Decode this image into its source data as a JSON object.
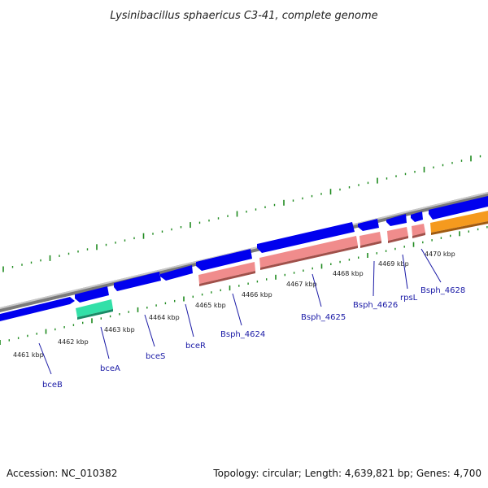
{
  "title": "Lysinibacillus sphaericus C3-41, complete genome",
  "footer": {
    "accession": "Accession: NC_010382",
    "summary": "Topology: circular; Length: 4,639,821 bp; Genes: 4,700"
  },
  "colors": {
    "backbone": "#7a7a7a",
    "forward_gene": "#0000ee",
    "rna_gene": "#f08c8c",
    "special_gene": "#33e0a8",
    "orange_gene": "#f59a1e",
    "ticks": "#1e8a1e",
    "label": "#1a1aa6"
  },
  "kbp_labels": [
    "4461 kbp",
    "4462 kbp",
    "4463 kbp",
    "4464 kbp",
    "4465 kbp",
    "4466 kbp",
    "4467 kbp",
    "4468 kbp",
    "4469 kbp",
    "4470 kbp"
  ],
  "gene_labels": [
    "bceB",
    "bceA",
    "bceS",
    "bceR",
    "Bsph_4624",
    "Bsph_4625",
    "Bsph_4626",
    "rpsL",
    "Bsph_4628"
  ]
}
